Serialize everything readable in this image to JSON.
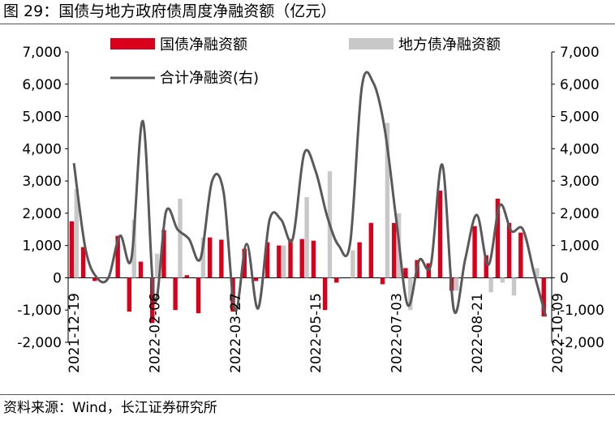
{
  "title": "图 29：国债与地方政府债周度净融资额（亿元）",
  "source": "资料来源：Wind，长江证券研究所",
  "colors": {
    "gov": "#d9001b",
    "local": "#c8c8c8",
    "total": "#595959"
  },
  "chart_data": {
    "type": "bar",
    "legend_position": "top",
    "grid": false,
    "ylim": [
      -2000,
      7000
    ],
    "y2lim": [
      -2000,
      7000
    ],
    "yticks": [
      "-2,000",
      "-1,000",
      "0",
      "1,000",
      "2,000",
      "3,000",
      "4,000",
      "5,000",
      "6,000",
      "7,000"
    ],
    "y2ticks": [
      "-2,000",
      "-1,000",
      "0",
      "1,000",
      "2,000",
      "3,000",
      "4,000",
      "5,000",
      "6,000",
      "7,000"
    ],
    "xticks": [
      "2021-12-19",
      "2022-02-06",
      "2022-03-27",
      "2022-05-15",
      "2022-07-03",
      "2022-08-21",
      "2022-10-09"
    ],
    "series": [
      {
        "name": "国债净融资额",
        "kind": "bar",
        "values": [
          1750,
          950,
          -100,
          0,
          1300,
          -1050,
          500,
          -1400,
          1480,
          -1000,
          80,
          -1100,
          1250,
          1180,
          -1050,
          900,
          -100,
          1100,
          1000,
          1200,
          1200,
          1150,
          -1000,
          -150,
          0,
          1100,
          1700,
          -200,
          1700,
          300,
          550,
          450,
          2700,
          -400,
          0,
          1600,
          700,
          2450,
          1700,
          1400,
          0,
          -1200
        ]
      },
      {
        "name": "地方债净融资额",
        "kind": "bar",
        "values": [
          2750,
          0,
          0,
          0,
          0,
          1800,
          0,
          750,
          0,
          2450,
          0,
          1250,
          0,
          0,
          0,
          0,
          0,
          0,
          1000,
          0,
          2500,
          0,
          3300,
          0,
          850,
          0,
          0,
          4800,
          2000,
          -1000,
          0,
          0,
          0,
          -400,
          0,
          0,
          -450,
          -150,
          -550,
          0,
          300,
          0
        ]
      },
      {
        "name": "合计净融资(右)",
        "kind": "line",
        "axis": "right",
        "values": [
          3550,
          900,
          0,
          0,
          1300,
          600,
          4850,
          -700,
          2050,
          1500,
          1200,
          600,
          3000,
          2650,
          -1000,
          1050,
          -950,
          1800,
          1800,
          1200,
          3850,
          3300,
          1900,
          1000,
          1100,
          5900,
          6050,
          4600,
          1800,
          -850,
          550,
          400,
          3500,
          -1000,
          600,
          1950,
          400,
          2250,
          1450,
          1500,
          100,
          -1200
        ]
      }
    ]
  }
}
